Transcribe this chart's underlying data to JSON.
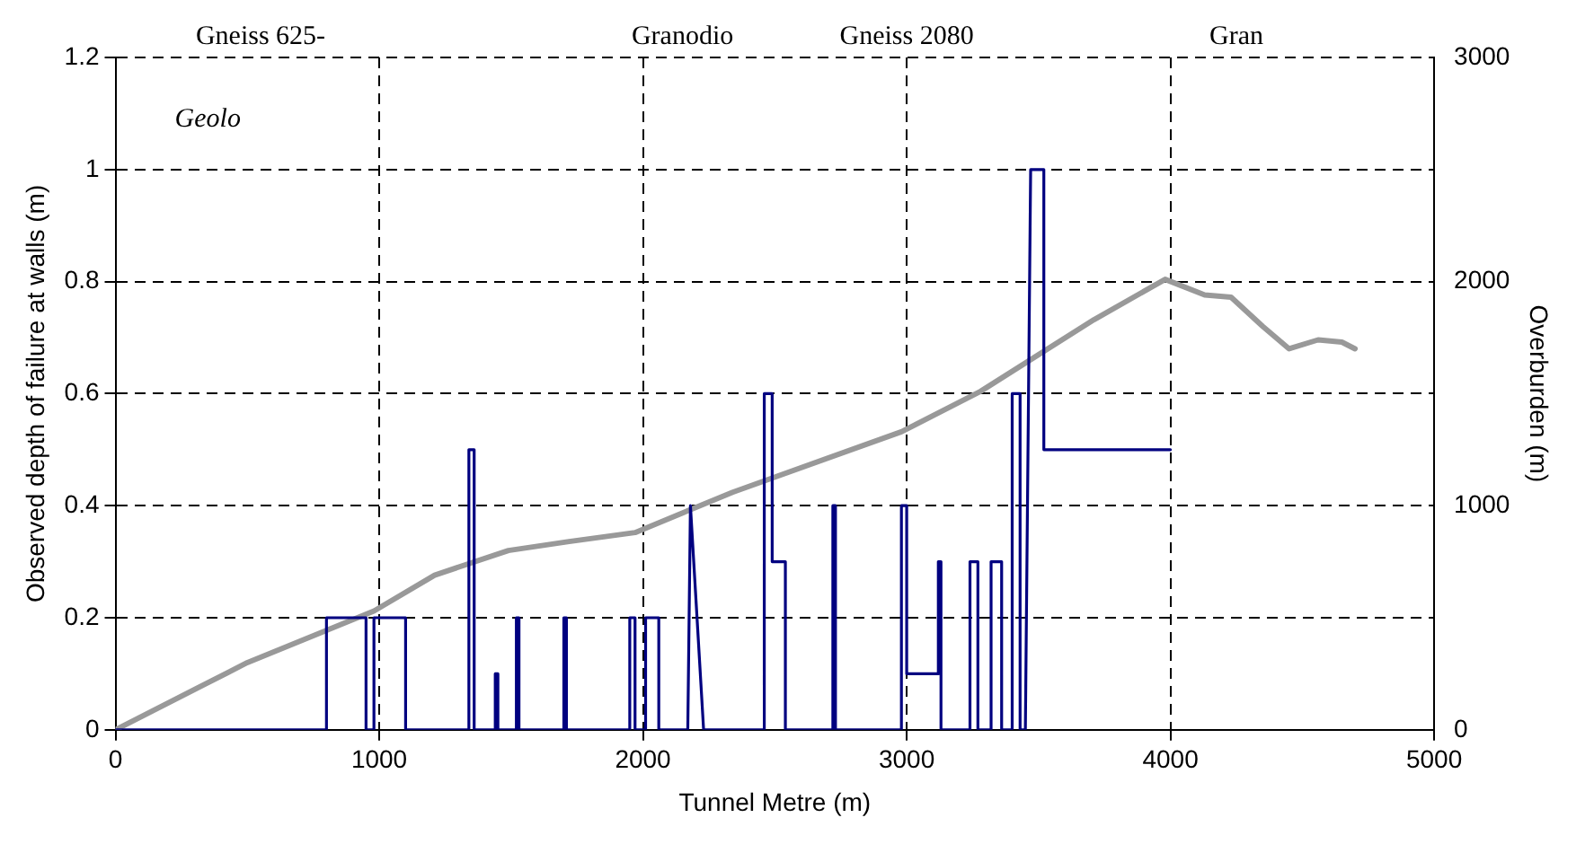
{
  "chart_data": {
    "type": "line",
    "xlabel": "Tunnel Metre (m)",
    "ylabel": "Observed depth of failure at walls (m)",
    "y2label": "Overburden (m)",
    "annotations": [
      "Gneiss 625-",
      "Granodio",
      "Gneiss 2080",
      "Gran",
      "Geolo"
    ],
    "xlim": [
      0,
      5000
    ],
    "xticks": [
      0,
      1000,
      2000,
      3000,
      4000,
      5000
    ],
    "ylim": [
      0,
      1.2
    ],
    "yticks": [
      0,
      0.2,
      0.4,
      0.6,
      0.8,
      1,
      1.2
    ],
    "y2lim": [
      0,
      3000
    ],
    "y2ticks": [
      0,
      1000,
      2000,
      3000
    ],
    "grid": true,
    "marker": "none",
    "line_style": "solid",
    "series": [
      {
        "color": "#000080",
        "x": [
          0,
          800,
          800,
          950,
          950,
          980,
          980,
          1100,
          1100,
          1340,
          1340,
          1360,
          1360,
          1440,
          1440,
          1450,
          1450,
          1520,
          1520,
          1530,
          1530,
          1700,
          1700,
          1710,
          1710,
          1950,
          1950,
          1970,
          1970,
          2010,
          2010,
          2060,
          2060,
          2170,
          2180,
          2230,
          2460,
          2460,
          2490,
          2490,
          2500,
          2500,
          2540,
          2540,
          2720,
          2720,
          2730,
          2730,
          2980,
          2980,
          3000,
          3000,
          3120,
          3120,
          3130,
          3130,
          3240,
          3240,
          3270,
          3270,
          3320,
          3320,
          3360,
          3360,
          3400,
          3400,
          3430,
          3430,
          3450,
          3470,
          3520,
          3520,
          3530,
          4000
        ],
        "values": [
          0,
          0,
          0.2,
          0.2,
          0,
          0,
          0.2,
          0.2,
          0,
          0,
          0.5,
          0.5,
          0,
          0,
          0.1,
          0.1,
          0,
          0,
          0.2,
          0.2,
          0,
          0,
          0.2,
          0.2,
          0,
          0,
          0.2,
          0.2,
          0,
          0,
          0.2,
          0.2,
          0,
          0,
          0.4,
          0,
          0,
          0.6,
          0.6,
          0.3,
          0.3,
          0.3,
          0.3,
          0,
          0,
          0.4,
          0.4,
          0,
          0,
          0.4,
          0.4,
          0.1,
          0.1,
          0.3,
          0.3,
          0,
          0,
          0.3,
          0.3,
          0,
          0,
          0.3,
          0.3,
          0,
          0,
          0.6,
          0.6,
          0,
          0,
          1,
          1,
          0.5,
          0.5,
          0.5
        ]
      },
      {
        "color": "#999999",
        "axis": "y2",
        "x": [
          0,
          500,
          980,
          1210,
          1490,
          1720,
          1970,
          2340,
          2980,
          3280,
          3710,
          3980,
          4130,
          4230,
          4350,
          4450,
          4560,
          4650,
          4700
        ],
        "values": [
          0,
          300,
          530,
          690,
          800,
          840,
          880,
          1060,
          1330,
          1510,
          1830,
          2010,
          1940,
          1930,
          1800,
          1700,
          1740,
          1730,
          1700
        ]
      }
    ]
  }
}
